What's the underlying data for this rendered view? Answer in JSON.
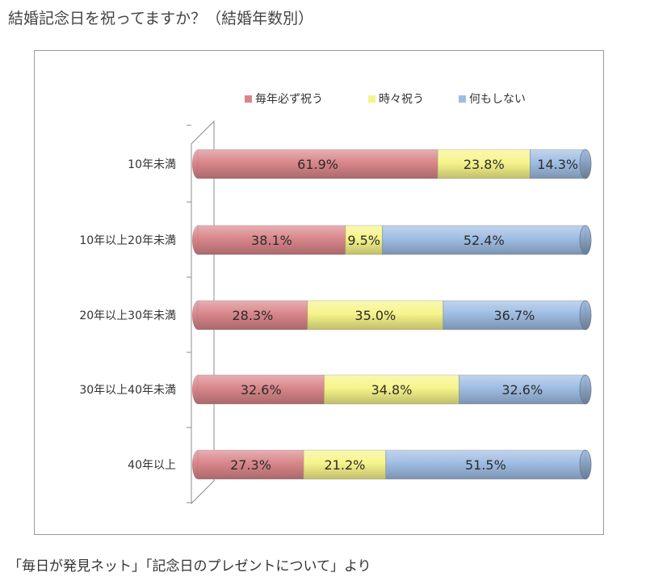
{
  "page": {
    "title": "結婚記念日を祝ってますか？（結婚年数別）",
    "source": "「毎日が発見ネット」「記念日のプレゼントについて」より"
  },
  "chart_data": {
    "type": "bar",
    "orientation": "horizontal",
    "stacked": "percent",
    "style": "3d-cylinder",
    "categories": [
      "10年未満",
      "10年以上20年未満",
      "20年以上30年未満",
      "30年以上40年未満",
      "40年以上"
    ],
    "series": [
      {
        "name": "毎年必ず祝う",
        "color": "#d9868a",
        "values": [
          61.9,
          38.1,
          28.3,
          32.6,
          27.3
        ],
        "labels": [
          "61.9%",
          "38.1%",
          "28.3%",
          "32.6%",
          "27.3%"
        ]
      },
      {
        "name": "時々祝う",
        "color": "#f6f48a",
        "values": [
          23.8,
          9.5,
          35.0,
          34.8,
          21.2
        ],
        "labels": [
          "23.8%",
          "9.5%",
          "35.0%",
          "34.8%",
          "21.2%"
        ]
      },
      {
        "name": "何もしない",
        "color": "#9fbde3",
        "values": [
          14.3,
          52.4,
          36.7,
          32.6,
          51.5
        ],
        "labels": [
          "14.3%",
          "52.4%",
          "36.7%",
          "32.6%",
          "51.5%"
        ]
      }
    ],
    "xlim": [
      0,
      100
    ],
    "legend": "top",
    "grid": false
  }
}
